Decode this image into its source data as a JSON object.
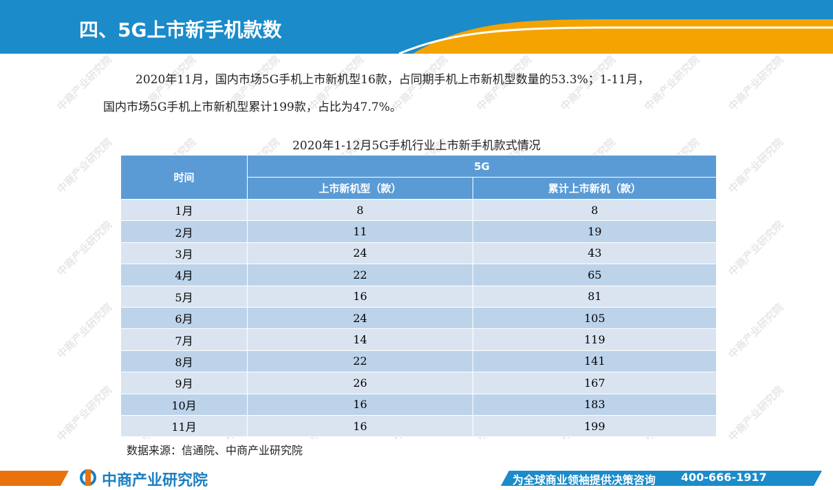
{
  "header": {
    "title": "四、5G上市新手机款数"
  },
  "paragraph": [
    "2020年11月，国内市场5G手机上市新机型16款，占同期手机上市新机型数量的53.3%；1-11月，",
    "国内市场5G手机上市新机型累计199款，占比为47.7%。"
  ],
  "table": {
    "caption": "2020年1-12月5G手机行业上市新手机款式情况",
    "header": {
      "time": "时间",
      "group": "5G",
      "col1": "上市新机型（款）",
      "col2": "累计上市新机（款）"
    },
    "rows": [
      [
        "1月",
        8,
        8
      ],
      [
        "2月",
        11,
        19
      ],
      [
        "3月",
        24,
        43
      ],
      [
        "4月",
        22,
        65
      ],
      [
        "5月",
        16,
        81
      ],
      [
        "6月",
        24,
        105
      ],
      [
        "7月",
        14,
        119
      ],
      [
        "8月",
        22,
        141
      ],
      [
        "9月",
        26,
        167
      ],
      [
        "10月",
        16,
        183
      ],
      [
        "11月",
        16,
        199
      ]
    ]
  },
  "source": "数据来源：信通院、中商产业研究院",
  "watermark": "中商产业研究院",
  "footer": {
    "logo": "中商产业研究院",
    "slogan": "为全球商业领袖提供决策咨询",
    "phone": "400-666-1917"
  }
}
